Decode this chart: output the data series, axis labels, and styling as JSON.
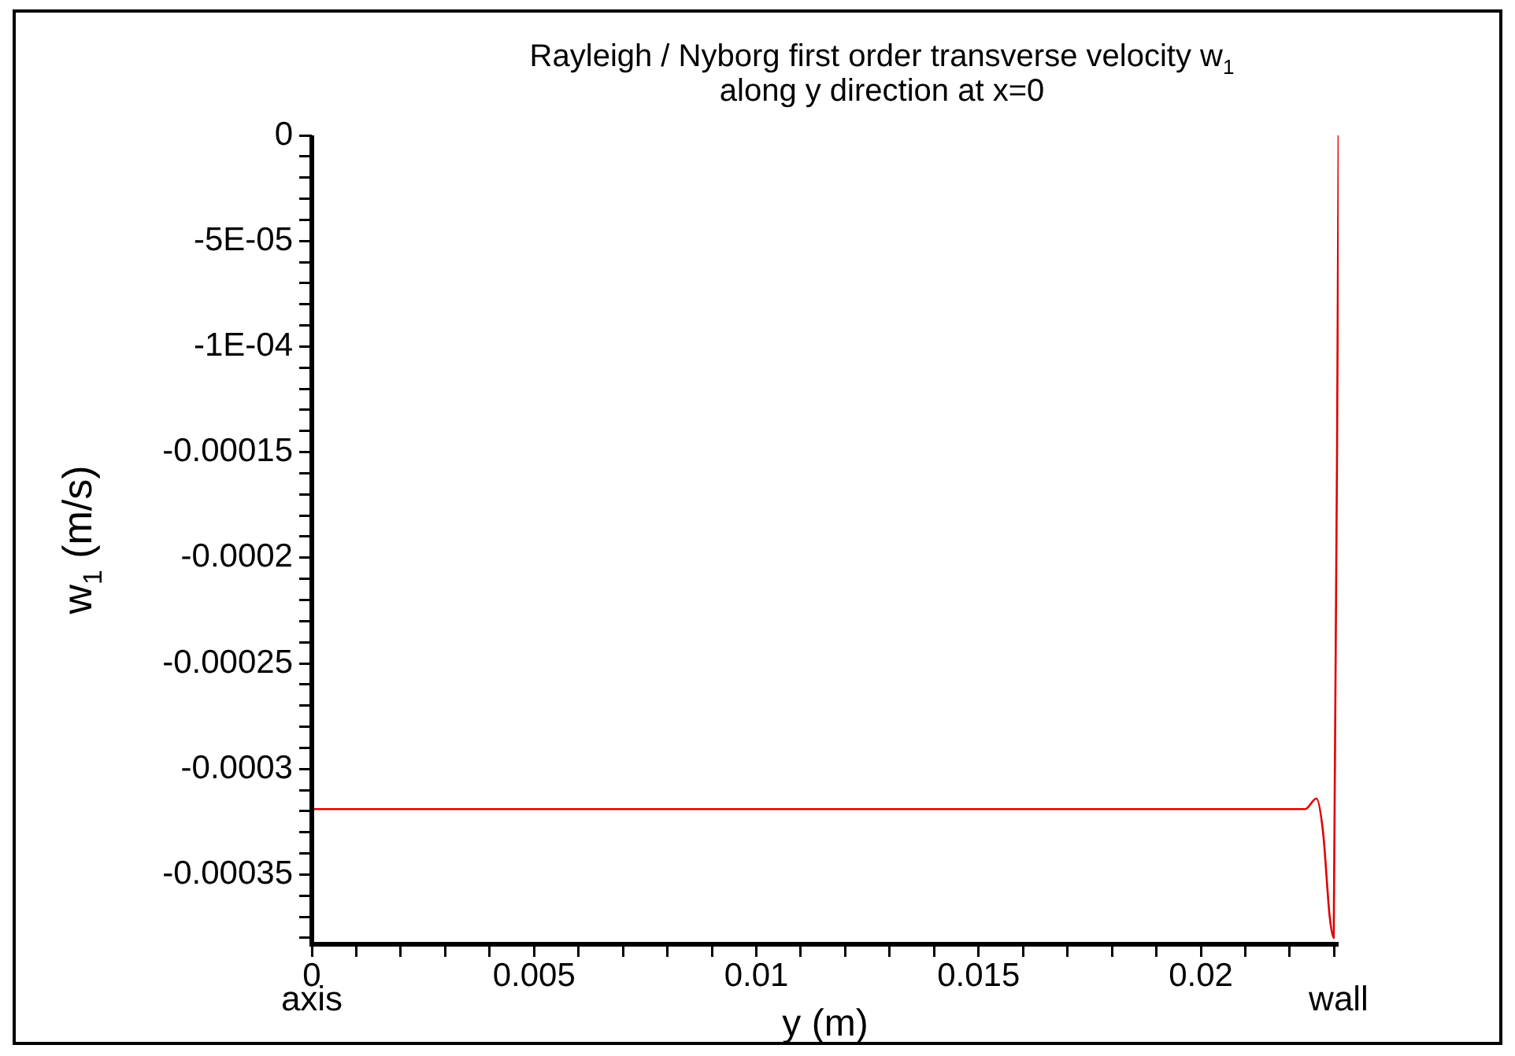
{
  "chart_data": {
    "type": "line",
    "title": "Rayleigh / Nyborg first order transverse velocity w$_{1}$",
    "subtitle": "along y direction at x=0",
    "xlabel": "y (m)",
    "ylabel": "w$_{1}$ (m/s)",
    "series": [
      {
        "color": "#e00000",
        "x": [
          0,
          0.005,
          0.01,
          0.015,
          0.02,
          0.0223,
          0.02235,
          0.0226,
          0.02275,
          0.0229,
          0.02299,
          0.0231
        ],
        "values": [
          -0.000319,
          -0.000319,
          -0.000319,
          -0.000319,
          -0.000319,
          -0.000319,
          -0.000319,
          -0.000314,
          -0.00033,
          -0.00037,
          -0.00038,
          0
        ]
      }
    ],
    "xlim": [
      0,
      0.0231
    ],
    "ylim": [
      -0.000383,
      0
    ],
    "xticks": [
      0,
      {
        "value": 0.001,
        "label": null
      },
      {
        "value": 0.002,
        "label": null
      },
      {
        "value": 0.003,
        "label": null
      },
      {
        "value": 0.004,
        "label": null
      },
      0.005,
      {
        "value": 0.006,
        "label": null
      },
      {
        "value": 0.007,
        "label": null
      },
      {
        "value": 0.008,
        "label": null
      },
      {
        "value": 0.009,
        "label": null
      },
      0.01,
      {
        "value": 0.011,
        "label": null
      },
      {
        "value": 0.012,
        "label": null
      },
      {
        "value": 0.013,
        "label": null
      },
      {
        "value": 0.014,
        "label": null
      },
      0.015,
      {
        "value": 0.016,
        "label": null
      },
      {
        "value": 0.017,
        "label": null
      },
      {
        "value": 0.018,
        "label": null
      },
      {
        "value": 0.019,
        "label": null
      },
      0.02,
      {
        "value": 0.021,
        "label": null
      },
      {
        "value": 0.022,
        "label": null
      },
      {
        "value": 0.023,
        "label": null
      }
    ],
    "yticks": [
      0,
      {
        "value": -1e-05,
        "label": null
      },
      {
        "value": -2e-05,
        "label": null
      },
      {
        "value": -3e-05,
        "label": null
      },
      {
        "value": -4e-05,
        "label": null
      },
      {
        "value": -5e-05,
        "label": "-5E-05"
      },
      {
        "value": -6e-05,
        "label": null
      },
      {
        "value": -7e-05,
        "label": null
      },
      {
        "value": -8e-05,
        "label": null
      },
      {
        "value": -9e-05,
        "label": null
      },
      {
        "value": -0.0001,
        "label": "-1E-04"
      },
      {
        "value": -0.00011,
        "label": null
      },
      {
        "value": -0.00012,
        "label": null
      },
      {
        "value": -0.00013,
        "label": null
      },
      {
        "value": -0.00014,
        "label": null
      },
      -0.00015,
      {
        "value": -0.00016,
        "label": null
      },
      {
        "value": -0.00017,
        "label": null
      },
      {
        "value": -0.00018,
        "label": null
      },
      {
        "value": -0.00019,
        "label": null
      },
      -0.0002,
      {
        "value": -0.00021,
        "label": null
      },
      {
        "value": -0.00022,
        "label": null
      },
      {
        "value": -0.00023,
        "label": null
      },
      {
        "value": -0.00024,
        "label": null
      },
      -0.00025,
      {
        "value": -0.00026,
        "label": null
      },
      {
        "value": -0.00027,
        "label": null
      },
      {
        "value": -0.00028,
        "label": null
      },
      {
        "value": -0.00029,
        "label": null
      },
      -0.0003,
      {
        "value": -0.00031,
        "label": null
      },
      {
        "value": -0.00032,
        "label": null
      },
      {
        "value": -0.00033,
        "label": null
      },
      {
        "value": -0.00034,
        "label": null
      },
      -0.00035,
      {
        "value": -0.00036,
        "label": null
      },
      {
        "value": -0.00037,
        "label": null
      },
      {
        "value": -0.00038,
        "label": null
      }
    ],
    "annotations": [
      "axis",
      "wall"
    ],
    "grid": false,
    "legend": false,
    "marker": "none",
    "line_style": "solid"
  }
}
